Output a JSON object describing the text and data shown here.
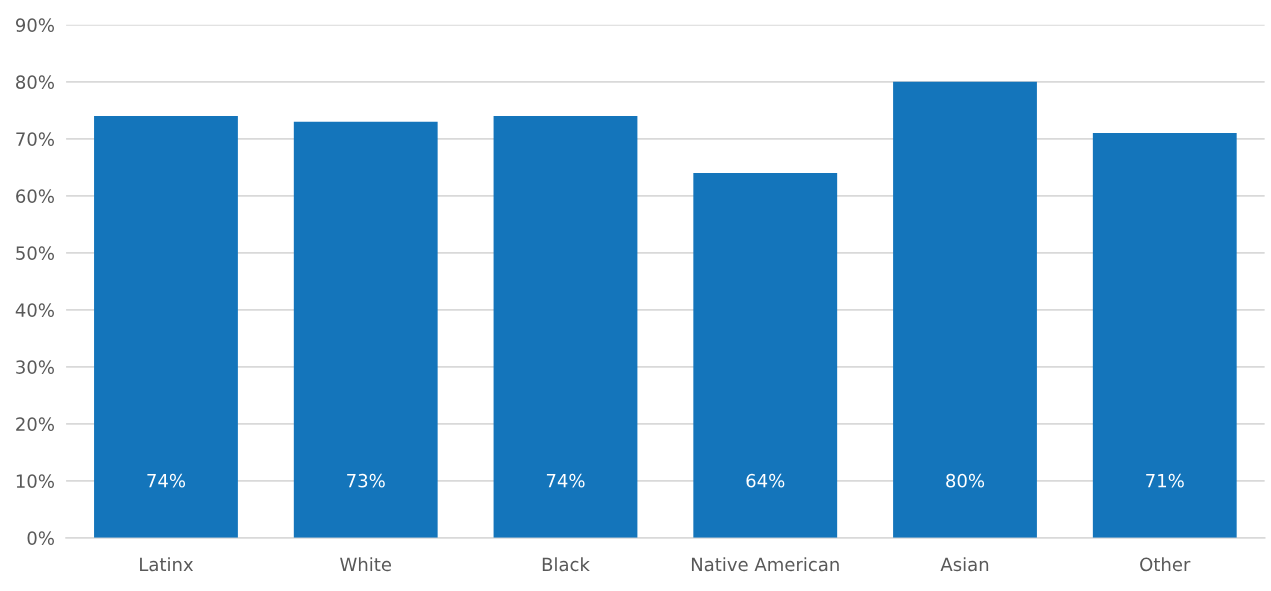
{
  "chart_data": {
    "type": "bar",
    "categories": [
      "Latinx",
      "White",
      "Black",
      "Native American",
      "Asian",
      "Other"
    ],
    "values": [
      74,
      73,
      74,
      64,
      80,
      71
    ],
    "value_labels": [
      "74%",
      "73%",
      "74%",
      "64%",
      "80%",
      "71%"
    ],
    "color": "#1475bb",
    "ylim": [
      0,
      90
    ],
    "yticks": [
      {
        "value": 0,
        "label": "0%"
      },
      {
        "value": 10,
        "label": "10%"
      },
      {
        "value": 20,
        "label": "20%"
      },
      {
        "value": 30,
        "label": "30%"
      },
      {
        "value": 40,
        "label": "40%"
      },
      {
        "value": 50,
        "label": "50%"
      },
      {
        "value": 60,
        "label": "60%"
      },
      {
        "value": 70,
        "label": "70%"
      },
      {
        "value": 80,
        "label": "80%"
      },
      {
        "value": 90,
        "label": "90%"
      }
    ],
    "grid": "y",
    "legend": false
  }
}
